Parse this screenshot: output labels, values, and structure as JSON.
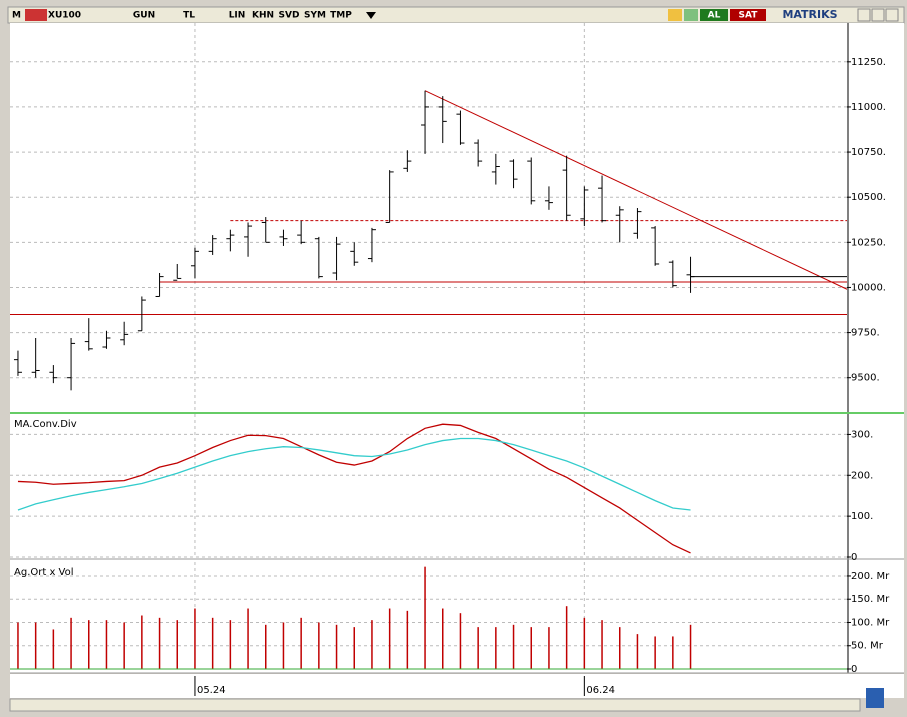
{
  "toolbar": {
    "logo": "M",
    "symbol": "XU100",
    "period": "GUN",
    "currency": "TL",
    "buttons": [
      "LIN",
      "KHN",
      "SVD",
      "SYM",
      "TMP"
    ],
    "buy": "AL",
    "sell": "SAT",
    "brand": "MATRIKS"
  },
  "chart_data": [
    {
      "type": "ohlc",
      "open": [
        9600,
        9530,
        9530,
        9500,
        9700,
        9670,
        9710,
        9760,
        9950,
        10040,
        10120,
        10200,
        10270,
        10280,
        10360,
        10280,
        10290,
        10270,
        10080,
        10200,
        10160,
        10360,
        10660,
        10900,
        11000,
        10960,
        10800,
        10640,
        10700,
        10700,
        10480,
        10650,
        10380,
        10550,
        10400,
        10300,
        10330,
        10140,
        10070
      ],
      "high": [
        9650,
        9720,
        9570,
        9720,
        9830,
        9760,
        9810,
        9950,
        10080,
        10130,
        10220,
        10290,
        10320,
        10360,
        10390,
        10320,
        10370,
        10280,
        10280,
        10250,
        10330,
        10650,
        10760,
        11090,
        11060,
        10980,
        10820,
        10740,
        10710,
        10720,
        10560,
        10730,
        10560,
        10620,
        10450,
        10440,
        10340,
        10150,
        10170
      ],
      "low": [
        9510,
        9500,
        9470,
        9430,
        9650,
        9660,
        9680,
        9760,
        9950,
        10050,
        10050,
        10180,
        10200,
        10170,
        10250,
        10230,
        10240,
        10050,
        10040,
        10120,
        10140,
        10360,
        10640,
        10740,
        10800,
        10790,
        10670,
        10570,
        10550,
        10460,
        10430,
        10370,
        10340,
        10360,
        10250,
        10270,
        10120,
        10000,
        9970
      ],
      "close": [
        9530,
        9540,
        9500,
        9690,
        9660,
        9720,
        9740,
        9930,
        10060,
        10050,
        10200,
        10270,
        10290,
        10340,
        10250,
        10270,
        10250,
        10060,
        10240,
        10140,
        10320,
        10640,
        10700,
        11000,
        10920,
        10800,
        10700,
        10670,
        10600,
        10480,
        10470,
        10400,
        10540,
        10370,
        10430,
        10420,
        10130,
        10010,
        10060
      ],
      "color": "#000000",
      "xlim": [
        -0.45,
        46.84
      ],
      "ylim": [
        9310,
        11465
      ],
      "yticks": [
        {
          "value": 9500,
          "label": "9500."
        },
        {
          "value": 9750,
          "label": "9750."
        },
        {
          "value": 10000,
          "label": "10000."
        },
        {
          "value": 10250,
          "label": "10250."
        },
        {
          "value": 10500,
          "label": "10500."
        },
        {
          "value": 10750,
          "label": "10750."
        },
        {
          "value": 11000,
          "label": "11000."
        },
        {
          "value": 11250,
          "label": "11250."
        }
      ],
      "xticks": [
        {
          "value": 10,
          "label": "05.24"
        },
        {
          "value": 32,
          "label": "06.24"
        }
      ],
      "grid": true,
      "lines": [
        {
          "x": [
            23,
            46.84
          ],
          "y": [
            11090,
            9990
          ],
          "color": "#c00000",
          "dashed": false
        },
        {
          "x": [
            12,
            46.84
          ],
          "y": [
            10370,
            10370
          ],
          "color": "#c00000",
          "dashed": true
        },
        {
          "x": [
            8,
            46.84
          ],
          "y": [
            10030,
            10030
          ],
          "color": "#c00000",
          "dashed": false
        },
        {
          "x": [
            -0.45,
            46.84
          ],
          "y": [
            9850,
            9850
          ],
          "color": "#c00000",
          "dashed": false
        },
        {
          "x": [
            38,
            46.84
          ],
          "y": [
            10060,
            10060
          ],
          "color": "#000000",
          "dashed": false
        }
      ]
    },
    {
      "type": "line",
      "title": "MA.Conv.Div",
      "series": [
        {
          "color": "#c00000",
          "values": [
            185,
            183,
            178,
            180,
            182,
            185,
            187,
            200,
            220,
            230,
            248,
            268,
            285,
            298,
            297,
            290,
            270,
            250,
            232,
            225,
            235,
            258,
            290,
            315,
            325,
            322,
            305,
            290,
            265,
            240,
            215,
            195,
            170,
            145,
            120,
            90,
            60,
            30,
            10
          ]
        },
        {
          "color": "#33cccc",
          "values": [
            115,
            130,
            140,
            150,
            158,
            165,
            172,
            180,
            192,
            205,
            220,
            235,
            248,
            258,
            265,
            270,
            268,
            262,
            255,
            248,
            246,
            252,
            262,
            275,
            285,
            290,
            290,
            285,
            275,
            262,
            248,
            235,
            218,
            198,
            178,
            158,
            138,
            120,
            115
          ]
        }
      ],
      "xlim": [
        -0.45,
        46.84
      ],
      "ylim": [
        0,
        350
      ],
      "yticks": [
        0,
        {
          "value": 100,
          "label": "100."
        },
        {
          "value": 200,
          "label": "200."
        },
        {
          "value": 300,
          "label": "300."
        }
      ],
      "grid": true
    },
    {
      "type": "bar",
      "title": "Ag.Ort x Vol",
      "color": "#c00000",
      "values": [
        100,
        100,
        85,
        110,
        105,
        105,
        100,
        115,
        110,
        105,
        130,
        110,
        105,
        130,
        95,
        100,
        110,
        100,
        95,
        90,
        105,
        130,
        125,
        220,
        130,
        120,
        90,
        90,
        95,
        90,
        90,
        135,
        110,
        105,
        90,
        75,
        70,
        70,
        95
      ],
      "xlim": [
        -0.45,
        46.84
      ],
      "ylim": [
        0,
        230
      ],
      "yticks": [
        0,
        {
          "value": 50,
          "label": "50. Mr"
        },
        {
          "value": 100,
          "label": "100. Mr"
        },
        {
          "value": 150,
          "label": "150. Mr"
        },
        {
          "value": 200,
          "label": "200. Mr"
        }
      ],
      "grid": true
    }
  ]
}
